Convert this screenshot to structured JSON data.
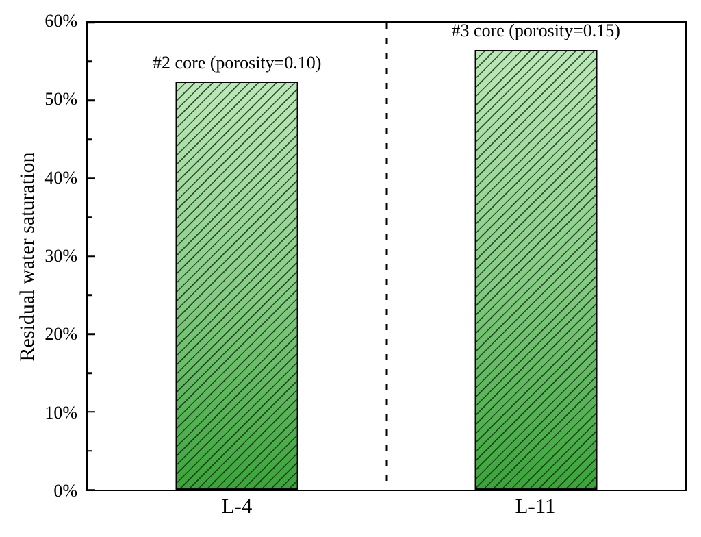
{
  "chart_data": {
    "type": "bar",
    "title": "",
    "xlabel": "",
    "ylabel": "Residual water saturation",
    "categories": [
      "L-4",
      "L-11"
    ],
    "values": [
      52.4,
      56.5
    ],
    "value_unit": "%",
    "bar_annotations": [
      "#2 core (porosity=0.10)",
      "#3 core (porosity=0.15)"
    ],
    "ylim": [
      0,
      60
    ],
    "y_major_tick_step": 10,
    "y_minor_tick_step": 5,
    "y_tick_labels": [
      "0%",
      "10%",
      "20%",
      "30%",
      "40%",
      "50%",
      "60%"
    ],
    "grid": false,
    "legend": "none",
    "separator_line": {
      "style": "dashed",
      "x_fraction": 0.5
    },
    "hatch_pattern": "/",
    "colors": {
      "bar_gradient_top": "#bce8b8",
      "bar_gradient_mid": "#86cc85",
      "bar_gradient_bottom": "#3aa439",
      "bar_edge": "#000000",
      "hatch_line": "rgba(15,40,15,0.8)",
      "axis": "#000000",
      "text": "#000000"
    }
  }
}
